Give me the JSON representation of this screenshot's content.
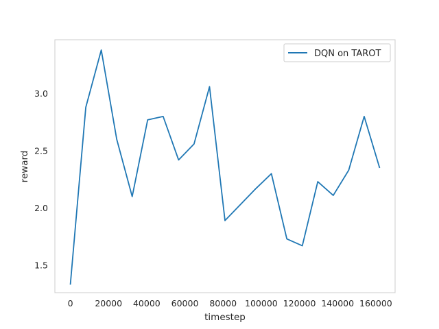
{
  "chart_data": {
    "type": "line",
    "xlabel": "timestep",
    "ylabel": "reward",
    "xlim": [
      -8100,
      170100
    ],
    "ylim": [
      1.26,
      3.47
    ],
    "x_ticks": [
      0,
      20000,
      40000,
      60000,
      80000,
      100000,
      120000,
      140000,
      160000
    ],
    "y_ticks": [
      1.5,
      2.0,
      2.5,
      3.0
    ],
    "grid": false,
    "legend": {
      "position": "top-right"
    },
    "series": [
      {
        "name": "DQN on TAROT",
        "color": "#1f77b4",
        "x": [
          0,
          8100,
          16200,
          24300,
          32400,
          40500,
          48600,
          56700,
          64800,
          72900,
          81000,
          89100,
          97200,
          105300,
          113400,
          121500,
          129600,
          137700,
          145800,
          153900,
          162000
        ],
        "y": [
          1.33,
          2.88,
          3.38,
          2.6,
          2.1,
          2.77,
          2.8,
          2.42,
          2.56,
          3.06,
          1.89,
          2.03,
          2.17,
          2.3,
          1.73,
          1.67,
          2.23,
          2.11,
          2.33,
          2.8,
          2.35
        ]
      }
    ]
  }
}
